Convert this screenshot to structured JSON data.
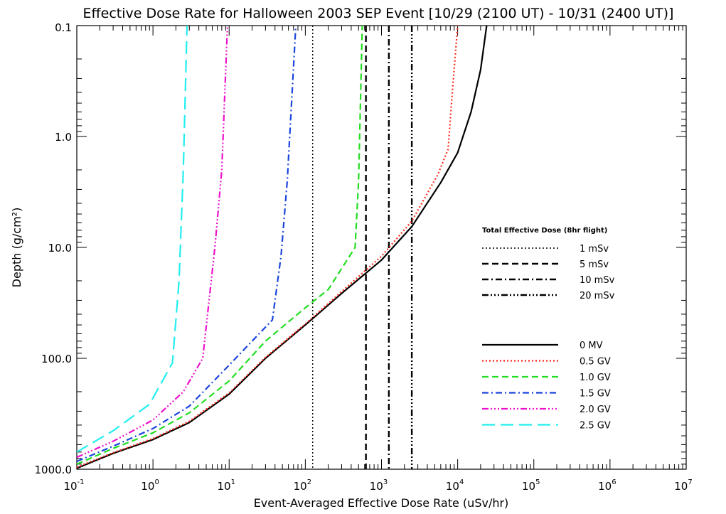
{
  "chart_data": {
    "type": "line",
    "title": "Effective Dose Rate for Halloween 2003 SEP Event [10/29 (2100 UT) - 10/31 (2400 UT)]",
    "xlabel": "Event-Averaged Effective Dose Rate (uSv/hr)",
    "ylabel": "Depth (g/cm²)",
    "x_scale": "log",
    "y_scale": "log",
    "y_inverted": true,
    "xlim": [
      0.1,
      10000000
    ],
    "ylim": [
      0.1,
      1000
    ],
    "x_ticks": [
      {
        "base": "10",
        "exp": "-1",
        "value": 0.1
      },
      {
        "base": "10",
        "exp": "0",
        "value": 1
      },
      {
        "base": "10",
        "exp": "1",
        "value": 10
      },
      {
        "base": "10",
        "exp": "2",
        "value": 100
      },
      {
        "base": "10",
        "exp": "3",
        "value": 1000
      },
      {
        "base": "10",
        "exp": "4",
        "value": 10000
      },
      {
        "base": "10",
        "exp": "5",
        "value": 100000
      },
      {
        "base": "10",
        "exp": "6",
        "value": 1000000
      },
      {
        "base": "10",
        "exp": "7",
        "value": 10000000
      }
    ],
    "y_ticks": [
      {
        "label": "0.1",
        "value": 0.1
      },
      {
        "label": "1.0",
        "value": 1
      },
      {
        "label": "10.0",
        "value": 10
      },
      {
        "label": "100.0",
        "value": 100
      },
      {
        "label": "1000.0",
        "value": 1000
      }
    ],
    "series": [
      {
        "name": "0 MV",
        "color": "#000000",
        "dash": "solid",
        "points": [
          [
            0.1,
            980
          ],
          [
            0.3,
            720
          ],
          [
            1,
            540
          ],
          [
            3,
            380
          ],
          [
            10,
            210
          ],
          [
            30,
            100
          ],
          [
            100,
            50
          ],
          [
            300,
            26
          ],
          [
            1000,
            13
          ],
          [
            2500,
            6.5
          ],
          [
            6000,
            2.6
          ],
          [
            10000,
            1.4
          ],
          [
            15000,
            0.6
          ],
          [
            20000,
            0.25
          ],
          [
            24000,
            0.1
          ]
        ]
      },
      {
        "name": "0.5 GV",
        "color": "#ff2a1a",
        "dash": "dotted",
        "points": [
          [
            0.1,
            960
          ],
          [
            0.3,
            710
          ],
          [
            1,
            530
          ],
          [
            3,
            370
          ],
          [
            10,
            205
          ],
          [
            30,
            98
          ],
          [
            100,
            49
          ],
          [
            300,
            25
          ],
          [
            1000,
            12
          ],
          [
            2500,
            5.8
          ],
          [
            5500,
            2.2
          ],
          [
            7500,
            1.3
          ],
          [
            8500,
            0.4
          ],
          [
            10000,
            0.1
          ]
        ]
      },
      {
        "name": "1.0 GV",
        "color": "#22dd22",
        "dash": "dashed",
        "points": [
          [
            0.1,
            900
          ],
          [
            0.3,
            650
          ],
          [
            1,
            470
          ],
          [
            3,
            310
          ],
          [
            10,
            160
          ],
          [
            30,
            70
          ],
          [
            100,
            35
          ],
          [
            200,
            24
          ],
          [
            450,
            10
          ],
          [
            500,
            2.5
          ],
          [
            560,
            0.1
          ]
        ]
      },
      {
        "name": "1.5 GV",
        "color": "#1a44dd",
        "dash": "dashdot",
        "points": [
          [
            0.1,
            850
          ],
          [
            0.3,
            620
          ],
          [
            1,
            430
          ],
          [
            3,
            270
          ],
          [
            10,
            115
          ],
          [
            37,
            45
          ],
          [
            48,
            12
          ],
          [
            58,
            2.5
          ],
          [
            75,
            0.1
          ]
        ]
      },
      {
        "name": "2.0 GV",
        "color": "#ee11cc",
        "dash": "dashdotdot",
        "points": [
          [
            0.1,
            780
          ],
          [
            0.3,
            560
          ],
          [
            1,
            360
          ],
          [
            2.5,
            200
          ],
          [
            4.5,
            100
          ],
          [
            6.5,
            10
          ],
          [
            8,
            2
          ],
          [
            9.5,
            0.1
          ]
        ]
      },
      {
        "name": "2.5 GV",
        "color": "#22eeee",
        "dash": "longdash",
        "points": [
          [
            0.1,
            700
          ],
          [
            0.3,
            450
          ],
          [
            0.9,
            260
          ],
          [
            1.8,
            110
          ],
          [
            2.2,
            20
          ],
          [
            2.5,
            2
          ],
          [
            2.8,
            0.1
          ]
        ]
      }
    ],
    "reference_lines": [
      {
        "name": "1 mSv",
        "x": 125,
        "dash": "dotted",
        "color": "#000000"
      },
      {
        "name": "5 mSv",
        "x": 625,
        "dash": "dashed",
        "color": "#000000"
      },
      {
        "name": "10 mSv",
        "x": 1250,
        "dash": "dashdot",
        "color": "#000000"
      },
      {
        "name": "20 mSv",
        "x": 2500,
        "dash": "dashdotdot",
        "color": "#000000"
      }
    ],
    "legend_total_title": "Total Effective Dose (8hr flight)",
    "legend_placement": "right"
  }
}
